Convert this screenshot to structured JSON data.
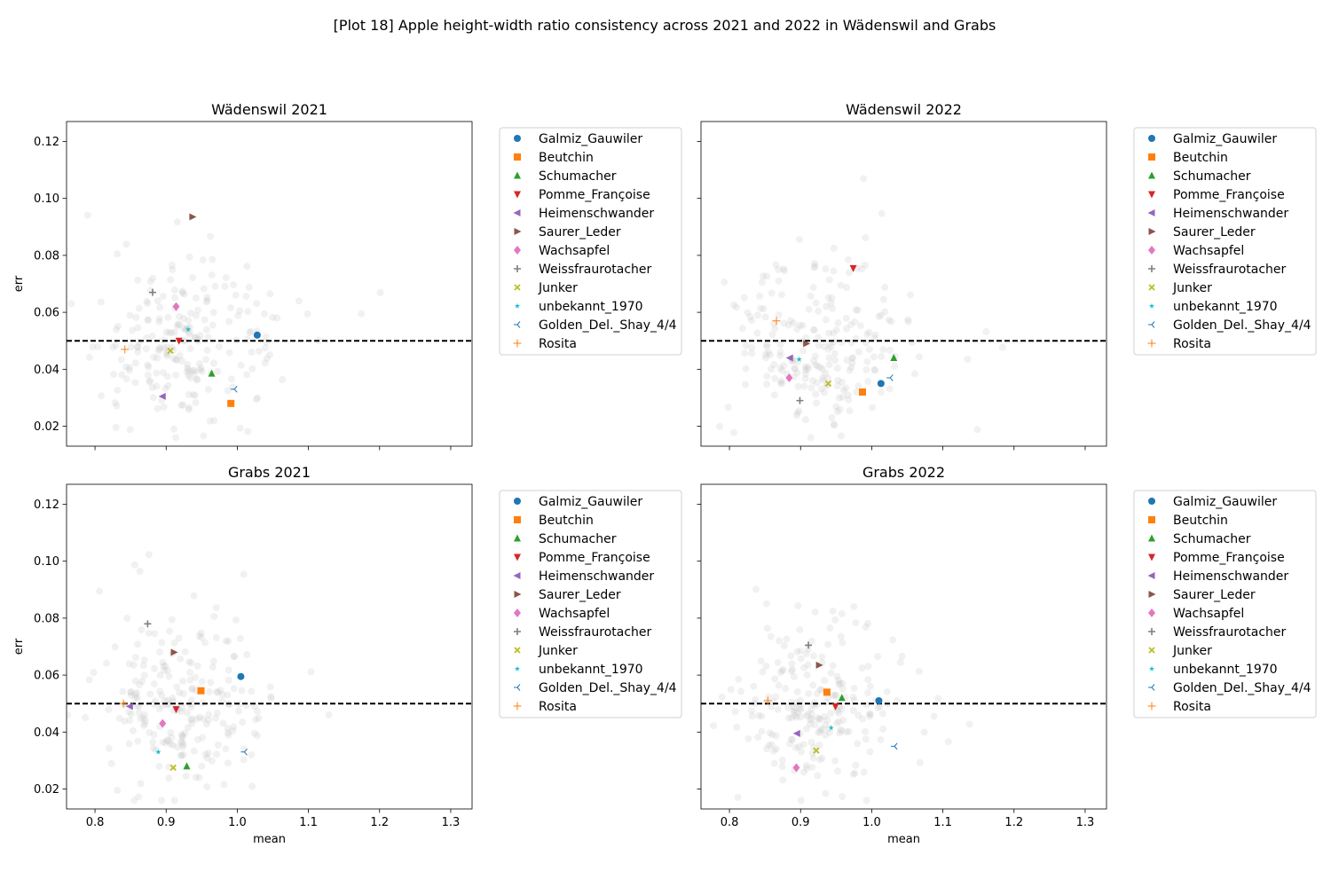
{
  "figure": {
    "suptitle": "[Plot 18] Apple height-width ratio consistency across 2021 and 2022 in Wädenswil and Grabs"
  },
  "axes_common": {
    "xlabel": "mean",
    "ylabel": "err",
    "xlim": [
      0.76,
      1.33
    ],
    "ylim": [
      0.013,
      0.127
    ],
    "xticks": [
      0.8,
      0.9,
      1.0,
      1.1,
      1.2,
      1.3
    ],
    "yticks": [
      0.02,
      0.04,
      0.06,
      0.08,
      0.1,
      0.12
    ],
    "reference_line_y": 0.05,
    "reference_line_style": "black dashed",
    "background_points_color": "#bdbdbd",
    "grid": false,
    "legend_placement": "outside right"
  },
  "legend_entries": [
    {
      "name": "Galmiz_Gauwiler",
      "color": "#1f77b4",
      "marker": "circle"
    },
    {
      "name": "Beutchin",
      "color": "#ff7f0e",
      "marker": "square"
    },
    {
      "name": "Schumacher",
      "color": "#2ca02c",
      "marker": "triangle-up"
    },
    {
      "name": "Pomme_Françoise",
      "color": "#d62728",
      "marker": "triangle-down"
    },
    {
      "name": "Heimenschwander",
      "color": "#9467bd",
      "marker": "triangle-left"
    },
    {
      "name": "Saurer_Leder",
      "color": "#8c564b",
      "marker": "triangle-right"
    },
    {
      "name": "Wachsapfel",
      "color": "#e377c2",
      "marker": "diamond"
    },
    {
      "name": "Weissfraurotacher",
      "color": "#7f7f7f",
      "marker": "plus"
    },
    {
      "name": "Junker",
      "color": "#bcbd22",
      "marker": "x"
    },
    {
      "name": "unbekannt_1970",
      "color": "#17becf",
      "marker": "star"
    },
    {
      "name": "Golden_Del._Shay_4/4",
      "color": "#1f77b4",
      "marker": "tri-left"
    },
    {
      "name": "Rosita",
      "color": "#ff7f0e",
      "marker": "thin-plus"
    }
  ],
  "chart_data": [
    {
      "type": "scatter",
      "title": "Wädenswil 2021",
      "xlabel": "",
      "ylabel": "err",
      "points": [
        {
          "series": "Galmiz_Gauwiler",
          "x": 1.028,
          "y": 0.052
        },
        {
          "series": "Beutchin",
          "x": 0.991,
          "y": 0.028
        },
        {
          "series": "Schumacher",
          "x": 0.964,
          "y": 0.0385
        },
        {
          "series": "Pomme_Françoise",
          "x": 0.918,
          "y": 0.05
        },
        {
          "series": "Heimenschwander",
          "x": 0.895,
          "y": 0.0305
        },
        {
          "series": "Saurer_Leder",
          "x": 0.937,
          "y": 0.0935
        },
        {
          "series": "Wachsapfel",
          "x": 0.914,
          "y": 0.062
        },
        {
          "series": "Weissfraurotacher",
          "x": 0.881,
          "y": 0.067
        },
        {
          "series": "Junker",
          "x": 0.906,
          "y": 0.0465
        },
        {
          "series": "unbekannt_1970",
          "x": 0.931,
          "y": 0.054
        },
        {
          "series": "Golden_Del._Shay_4/4",
          "x": 0.996,
          "y": 0.033
        },
        {
          "series": "Rosita",
          "x": 0.842,
          "y": 0.047
        }
      ]
    },
    {
      "type": "scatter",
      "title": "Wädenswil 2022",
      "xlabel": "",
      "ylabel": "",
      "points": [
        {
          "series": "Galmiz_Gauwiler",
          "x": 1.013,
          "y": 0.035
        },
        {
          "series": "Beutchin",
          "x": 0.987,
          "y": 0.032
        },
        {
          "series": "Schumacher",
          "x": 1.031,
          "y": 0.044
        },
        {
          "series": "Pomme_Françoise",
          "x": 0.974,
          "y": 0.0755
        },
        {
          "series": "Heimenschwander",
          "x": 0.885,
          "y": 0.044
        },
        {
          "series": "Saurer_Leder",
          "x": 0.908,
          "y": 0.049
        },
        {
          "series": "Wachsapfel",
          "x": 0.884,
          "y": 0.037
        },
        {
          "series": "Weissfraurotacher",
          "x": 0.899,
          "y": 0.029
        },
        {
          "series": "Junker",
          "x": 0.939,
          "y": 0.035
        },
        {
          "series": "unbekannt_1970",
          "x": 0.898,
          "y": 0.0435
        },
        {
          "series": "Golden_Del._Shay_4/4",
          "x": 1.026,
          "y": 0.037
        },
        {
          "series": "Rosita",
          "x": 0.866,
          "y": 0.057
        }
      ]
    },
    {
      "type": "scatter",
      "title": "Grabs 2021",
      "xlabel": "mean",
      "ylabel": "err",
      "points": [
        {
          "series": "Galmiz_Gauwiler",
          "x": 1.005,
          "y": 0.0595
        },
        {
          "series": "Beutchin",
          "x": 0.949,
          "y": 0.0545
        },
        {
          "series": "Schumacher",
          "x": 0.929,
          "y": 0.028
        },
        {
          "series": "Pomme_Françoise",
          "x": 0.914,
          "y": 0.048
        },
        {
          "series": "Heimenschwander",
          "x": 0.849,
          "y": 0.049
        },
        {
          "series": "Saurer_Leder",
          "x": 0.911,
          "y": 0.068
        },
        {
          "series": "Wachsapfel",
          "x": 0.895,
          "y": 0.043
        },
        {
          "series": "Weissfraurotacher",
          "x": 0.874,
          "y": 0.078
        },
        {
          "series": "Junker",
          "x": 0.91,
          "y": 0.0275
        },
        {
          "series": "unbekannt_1970",
          "x": 0.889,
          "y": 0.033
        },
        {
          "series": "Golden_Del._Shay_4/4",
          "x": 1.01,
          "y": 0.033
        },
        {
          "series": "Rosita",
          "x": 0.84,
          "y": 0.05
        }
      ]
    },
    {
      "type": "scatter",
      "title": "Grabs 2022",
      "xlabel": "mean",
      "ylabel": "",
      "points": [
        {
          "series": "Galmiz_Gauwiler",
          "x": 1.01,
          "y": 0.051
        },
        {
          "series": "Beutchin",
          "x": 0.937,
          "y": 0.054
        },
        {
          "series": "Schumacher",
          "x": 0.958,
          "y": 0.052
        },
        {
          "series": "Pomme_Françoise",
          "x": 0.949,
          "y": 0.049
        },
        {
          "series": "Heimenschwander",
          "x": 0.895,
          "y": 0.0395
        },
        {
          "series": "Saurer_Leder",
          "x": 0.926,
          "y": 0.0635
        },
        {
          "series": "Wachsapfel",
          "x": 0.894,
          "y": 0.0275
        },
        {
          "series": "Weissfraurotacher",
          "x": 0.911,
          "y": 0.0705
        },
        {
          "series": "Junker",
          "x": 0.922,
          "y": 0.0335
        },
        {
          "series": "unbekannt_1970",
          "x": 0.943,
          "y": 0.0415
        },
        {
          "series": "Golden_Del._Shay_4/4",
          "x": 1.032,
          "y": 0.035
        },
        {
          "series": "Rosita",
          "x": 0.854,
          "y": 0.051
        }
      ]
    }
  ]
}
